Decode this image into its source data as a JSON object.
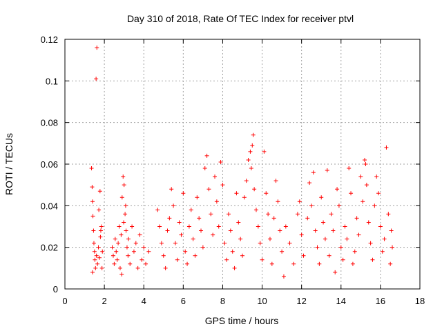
{
  "chart_data": {
    "type": "scatter",
    "title": "Day 310 of 2018, Rate Of TEC Index for receiver ptvl",
    "xlabel": "GPS time / hours",
    "ylabel": "ROTI / TECUs",
    "xlim": [
      0,
      18
    ],
    "ylim": [
      0,
      0.12
    ],
    "xticks": [
      "0",
      "2",
      "4",
      "6",
      "8",
      "10",
      "12",
      "14",
      "16",
      "18"
    ],
    "yticks": [
      "0",
      "0.02",
      "0.04",
      "0.06",
      "0.08",
      "0.1",
      "0.12"
    ],
    "grid": true,
    "marker": "+",
    "color": "#ff0000",
    "series": [
      {
        "name": "ROTI",
        "points": [
          [
            1.35,
            0.058
          ],
          [
            1.38,
            0.049
          ],
          [
            1.4,
            0.042
          ],
          [
            1.42,
            0.035
          ],
          [
            1.45,
            0.028
          ],
          [
            1.47,
            0.022
          ],
          [
            1.5,
            0.018
          ],
          [
            1.52,
            0.014
          ],
          [
            1.55,
            0.01
          ],
          [
            1.4,
            0.008
          ],
          [
            1.62,
            0.116
          ],
          [
            1.58,
            0.101
          ],
          [
            1.6,
            0.016
          ],
          [
            1.65,
            0.012
          ],
          [
            1.7,
            0.02
          ],
          [
            1.75,
            0.015
          ],
          [
            1.8,
            0.025
          ],
          [
            1.85,
            0.03
          ],
          [
            1.9,
            0.018
          ],
          [
            1.72,
            0.038
          ],
          [
            1.78,
            0.047
          ],
          [
            1.82,
            0.028
          ],
          [
            1.88,
            0.01
          ],
          [
            2.4,
            0.02
          ],
          [
            2.45,
            0.016
          ],
          [
            2.5,
            0.012
          ],
          [
            2.55,
            0.024
          ],
          [
            2.6,
            0.018
          ],
          [
            2.65,
            0.014
          ],
          [
            2.7,
            0.022
          ],
          [
            2.75,
            0.03
          ],
          [
            2.8,
            0.01
          ],
          [
            2.85,
            0.026
          ],
          [
            2.9,
            0.044
          ],
          [
            2.95,
            0.054
          ],
          [
            3.0,
            0.05
          ],
          [
            3.05,
            0.036
          ],
          [
            3.1,
            0.028
          ],
          [
            3.15,
            0.02
          ],
          [
            3.2,
            0.016
          ],
          [
            2.88,
            0.007
          ],
          [
            2.98,
            0.032
          ],
          [
            3.08,
            0.04
          ],
          [
            3.22,
            0.024
          ],
          [
            3.3,
            0.012
          ],
          [
            3.4,
            0.03
          ],
          [
            3.5,
            0.018
          ],
          [
            3.6,
            0.022
          ],
          [
            3.7,
            0.01
          ],
          [
            3.8,
            0.026
          ],
          [
            3.9,
            0.014
          ],
          [
            4.0,
            0.02
          ],
          [
            4.1,
            0.012
          ],
          [
            4.25,
            0.018
          ],
          [
            4.7,
            0.038
          ],
          [
            4.8,
            0.03
          ],
          [
            4.9,
            0.022
          ],
          [
            5.0,
            0.016
          ],
          [
            5.1,
            0.01
          ],
          [
            5.2,
            0.028
          ],
          [
            5.3,
            0.034
          ],
          [
            5.4,
            0.048
          ],
          [
            5.5,
            0.04
          ],
          [
            5.6,
            0.022
          ],
          [
            5.7,
            0.014
          ],
          [
            5.8,
            0.032
          ],
          [
            5.9,
            0.026
          ],
          [
            6.0,
            0.046
          ],
          [
            6.1,
            0.018
          ],
          [
            6.2,
            0.012
          ],
          [
            6.3,
            0.03
          ],
          [
            6.4,
            0.038
          ],
          [
            6.5,
            0.024
          ],
          [
            6.6,
            0.016
          ],
          [
            6.7,
            0.044
          ],
          [
            6.8,
            0.034
          ],
          [
            6.9,
            0.028
          ],
          [
            7.0,
            0.02
          ],
          [
            7.1,
            0.058
          ],
          [
            7.2,
            0.064
          ],
          [
            7.3,
            0.048
          ],
          [
            7.4,
            0.036
          ],
          [
            7.5,
            0.026
          ],
          [
            7.6,
            0.054
          ],
          [
            7.7,
            0.042
          ],
          [
            7.8,
            0.03
          ],
          [
            7.9,
            0.061
          ],
          [
            8.0,
            0.05
          ],
          [
            8.1,
            0.022
          ],
          [
            8.2,
            0.014
          ],
          [
            8.3,
            0.036
          ],
          [
            8.4,
            0.028
          ],
          [
            8.5,
            0.018
          ],
          [
            8.6,
            0.01
          ],
          [
            8.7,
            0.046
          ],
          [
            8.8,
            0.032
          ],
          [
            8.9,
            0.024
          ],
          [
            9.0,
            0.016
          ],
          [
            9.1,
            0.044
          ],
          [
            9.2,
            0.052
          ],
          [
            9.3,
            0.062
          ],
          [
            9.4,
            0.066
          ],
          [
            9.45,
            0.058
          ],
          [
            9.5,
            0.069
          ],
          [
            9.55,
            0.074
          ],
          [
            9.6,
            0.048
          ],
          [
            9.7,
            0.038
          ],
          [
            9.8,
            0.03
          ],
          [
            9.9,
            0.022
          ],
          [
            10.0,
            0.014
          ],
          [
            10.1,
            0.066
          ],
          [
            10.2,
            0.046
          ],
          [
            10.3,
            0.036
          ],
          [
            10.4,
            0.024
          ],
          [
            10.5,
            0.012
          ],
          [
            10.6,
            0.034
          ],
          [
            10.7,
            0.052
          ],
          [
            10.8,
            0.042
          ],
          [
            10.9,
            0.028
          ],
          [
            11.0,
            0.018
          ],
          [
            11.1,
            0.006
          ],
          [
            11.2,
            0.03
          ],
          [
            11.4,
            0.022
          ],
          [
            11.6,
            0.012
          ],
          [
            11.8,
            0.036
          ],
          [
            11.9,
            0.042
          ],
          [
            12.0,
            0.026
          ],
          [
            12.1,
            0.016
          ],
          [
            12.3,
            0.034
          ],
          [
            12.4,
            0.051
          ],
          [
            12.5,
            0.04
          ],
          [
            12.6,
            0.056
          ],
          [
            12.7,
            0.028
          ],
          [
            12.8,
            0.02
          ],
          [
            12.9,
            0.012
          ],
          [
            13.0,
            0.044
          ],
          [
            13.1,
            0.032
          ],
          [
            13.2,
            0.024
          ],
          [
            13.3,
            0.057
          ],
          [
            13.4,
            0.016
          ],
          [
            13.5,
            0.036
          ],
          [
            13.6,
            0.028
          ],
          [
            13.7,
            0.008
          ],
          [
            13.8,
            0.048
          ],
          [
            13.9,
            0.04
          ],
          [
            14.0,
            0.02
          ],
          [
            14.1,
            0.014
          ],
          [
            14.2,
            0.03
          ],
          [
            14.3,
            0.024
          ],
          [
            14.4,
            0.058
          ],
          [
            14.5,
            0.046
          ],
          [
            14.6,
            0.012
          ],
          [
            14.7,
            0.018
          ],
          [
            14.8,
            0.034
          ],
          [
            14.9,
            0.026
          ],
          [
            15.0,
            0.054
          ],
          [
            15.1,
            0.042
          ],
          [
            15.2,
            0.062
          ],
          [
            15.25,
            0.06
          ],
          [
            15.3,
            0.05
          ],
          [
            15.4,
            0.032
          ],
          [
            15.5,
            0.022
          ],
          [
            15.6,
            0.014
          ],
          [
            15.7,
            0.04
          ],
          [
            15.8,
            0.054
          ],
          [
            15.9,
            0.046
          ],
          [
            16.0,
            0.03
          ],
          [
            16.1,
            0.018
          ],
          [
            16.2,
            0.024
          ],
          [
            16.3,
            0.068
          ],
          [
            16.4,
            0.036
          ],
          [
            16.5,
            0.012
          ],
          [
            16.55,
            0.028
          ],
          [
            16.6,
            0.02
          ]
        ]
      }
    ]
  }
}
